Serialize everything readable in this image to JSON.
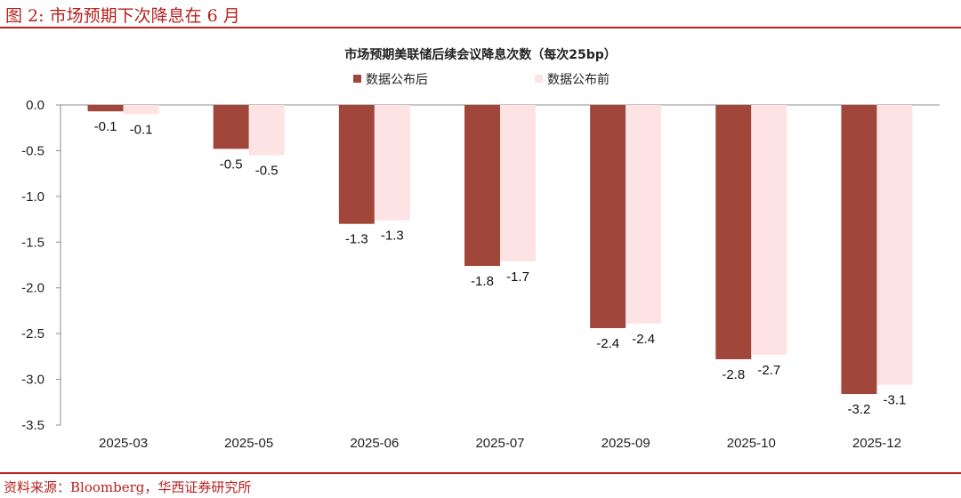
{
  "figure": {
    "title": "图 2:  市场预期下次降息在 6 月",
    "source": "资料来源：Bloomberg，华西证券研究所"
  },
  "colors": {
    "brand": "#b5221f",
    "series_after": "#a0463a",
    "series_before": "#fde3e3"
  },
  "chart_data": {
    "type": "bar",
    "title": "市场预期美联储后续会议降息次数（每次25bp）",
    "categories": [
      "2025-03",
      "2025-05",
      "2025-06",
      "2025-07",
      "2025-09",
      "2025-10",
      "2025-12"
    ],
    "series": [
      {
        "name": "数据公布后",
        "values": [
          -0.07,
          -0.48,
          -1.3,
          -1.76,
          -2.44,
          -2.78,
          -3.16
        ],
        "labels": [
          "-0.1",
          "-0.5",
          "-1.3",
          "-1.8",
          "-2.4",
          "-2.8",
          "-3.2"
        ],
        "color": "#a0463a"
      },
      {
        "name": "数据公布前",
        "values": [
          -0.1,
          -0.55,
          -1.26,
          -1.71,
          -2.39,
          -2.73,
          -3.06
        ],
        "labels": [
          "-0.1",
          "-0.5",
          "-1.3",
          "-1.7",
          "-2.4",
          "-2.7",
          "-3.1"
        ],
        "color": "#fde3e3"
      }
    ],
    "ylim": [
      -3.5,
      0
    ],
    "yticks": [
      "0.0",
      "-0.5",
      "-1.0",
      "-1.5",
      "-2.0",
      "-2.5",
      "-3.0",
      "-3.5"
    ],
    "legend_position": "top-center",
    "grid": false
  }
}
